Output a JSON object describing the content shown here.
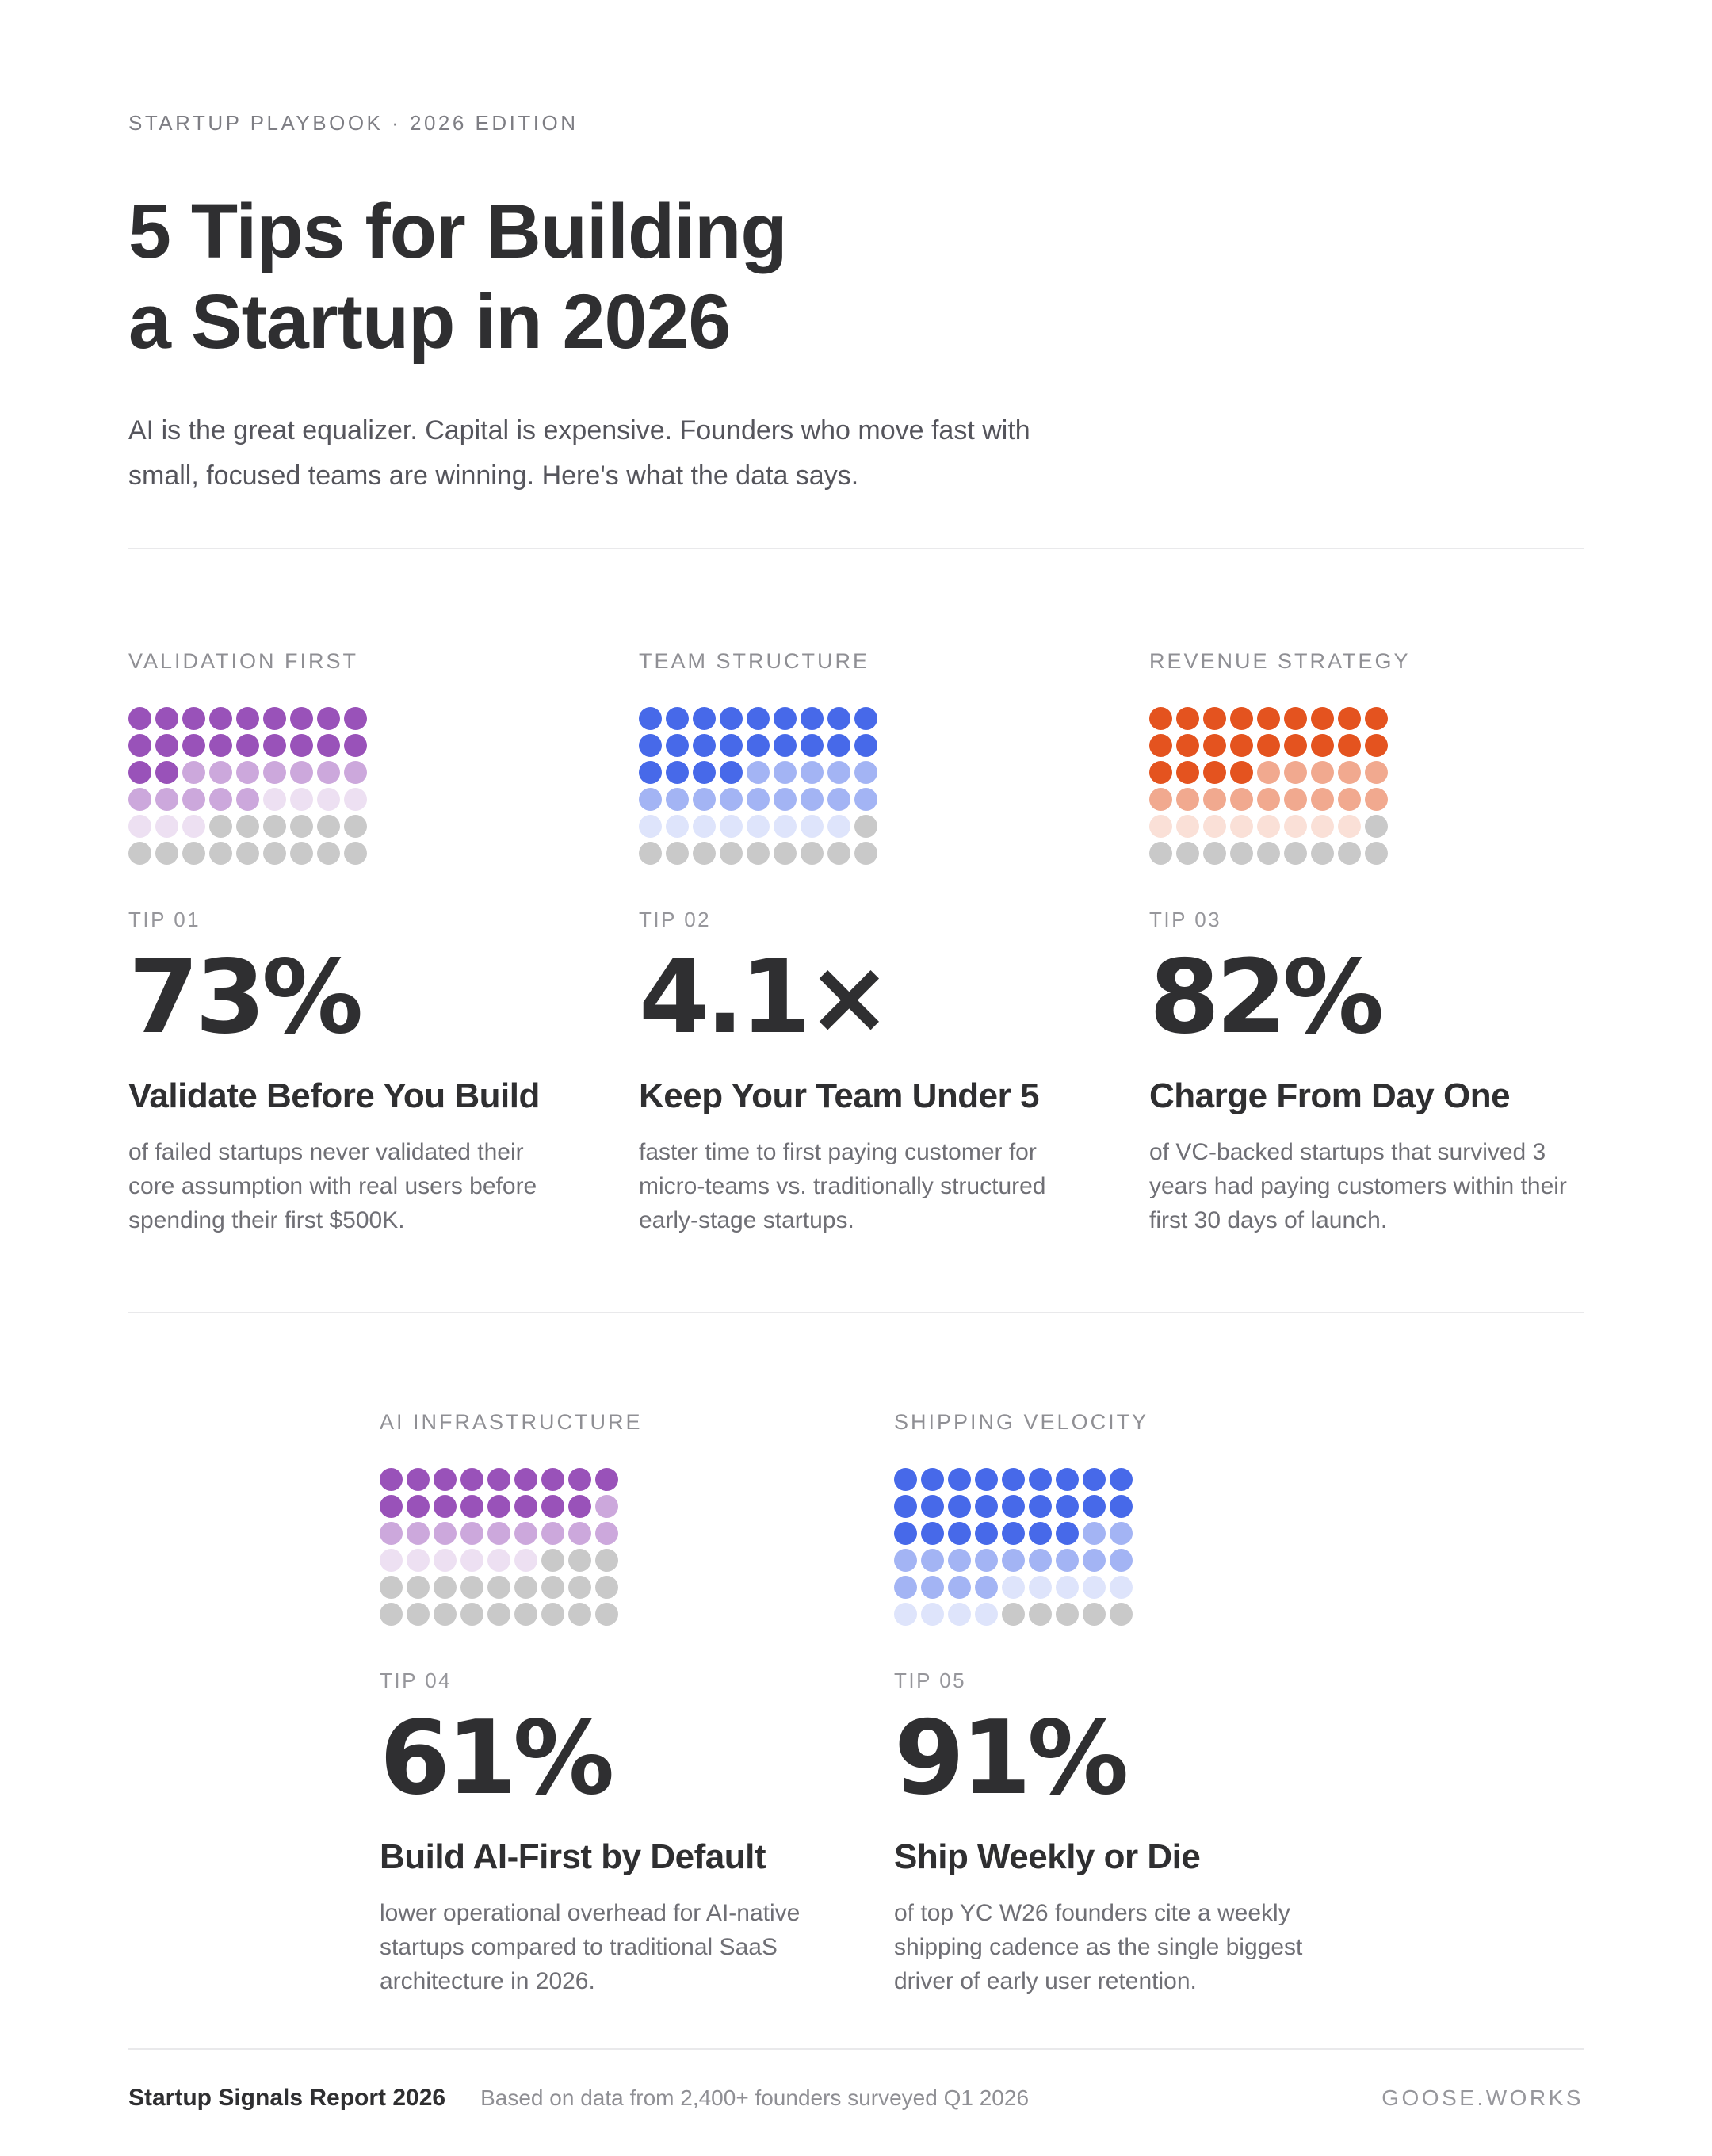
{
  "header": {
    "kicker": "STARTUP PLAYBOOK · 2026 EDITION",
    "title_line1": "5 Tips for Building",
    "title_line2": "a Startup in 2026",
    "subtitle": "AI is the great equalizer. Capital is expensive. Founders who move fast with small, focused teams are winning. Here's what the data says."
  },
  "tips": [
    {
      "section_label": "VALIDATION FIRST",
      "tip_label": "TIP 01",
      "stat": "73%",
      "heading": "Validate Before You Build",
      "body": "of failed startups never validated their core assumption with real users before spending their first $500K."
    },
    {
      "section_label": "TEAM STRUCTURE",
      "tip_label": "TIP 02",
      "stat": "4.1×",
      "heading": "Keep Your Team Under 5",
      "body": "faster time to first paying customer for micro-teams vs. traditionally structured early-stage startups."
    },
    {
      "section_label": "REVENUE STRATEGY",
      "tip_label": "TIP 03",
      "stat": "82%",
      "heading": "Charge From Day One",
      "body": "of VC-backed startups that survived 3 years had paying customers within their first 30 days of launch."
    },
    {
      "section_label": "AI INFRASTRUCTURE",
      "tip_label": "TIP 04",
      "stat": "61%",
      "heading": "Build AI-First by Default",
      "body": "lower operational overhead for AI-native startups compared to traditional SaaS architecture in 2026."
    },
    {
      "section_label": "SHIPPING VELOCITY",
      "tip_label": "TIP 05",
      "stat": "91%",
      "heading": "Ship Weekly or Die",
      "body": "of top YC W26 founders cite a weekly shipping cadence as the single biggest driver of early user retention."
    }
  ],
  "chart_data": [
    {
      "type": "waffle",
      "title": "VALIDATION FIRST",
      "value_label": "73%",
      "value": 73,
      "rows": 6,
      "columns": 9,
      "total": 54,
      "filled": 39,
      "color": "#9952b9",
      "empty_color": "#c9c9c9",
      "fade_tiers": {
        "full": 0.5,
        "medium": 0.81
      },
      "opacities": [
        1,
        0.5,
        0.18
      ]
    },
    {
      "type": "waffle",
      "title": "TEAM STRUCTURE",
      "value_label": "4.1×",
      "value": 4.1,
      "rows": 6,
      "columns": 9,
      "total": 54,
      "filled": 44,
      "color": "#4769e9",
      "empty_color": "#c9c9c9",
      "fade_tiers": {
        "full": 0.5,
        "medium": 0.81
      },
      "opacities": [
        1,
        0.5,
        0.18
      ]
    },
    {
      "type": "waffle",
      "title": "REVENUE STRATEGY",
      "value_label": "82%",
      "value": 82,
      "rows": 6,
      "columns": 9,
      "total": 54,
      "filled": 44,
      "color": "#e4531f",
      "empty_color": "#c9c9c9",
      "fade_tiers": {
        "full": 0.5,
        "medium": 0.81
      },
      "opacities": [
        1,
        0.5,
        0.18
      ]
    },
    {
      "type": "waffle",
      "title": "AI INFRASTRUCTURE",
      "value_label": "61%",
      "value": 61,
      "rows": 6,
      "columns": 9,
      "total": 54,
      "filled": 33,
      "color": "#9952b9",
      "empty_color": "#c9c9c9",
      "fade_tiers": {
        "full": 0.5,
        "medium": 0.81
      },
      "opacities": [
        1,
        0.5,
        0.18
      ]
    },
    {
      "type": "waffle",
      "title": "SHIPPING VELOCITY",
      "value_label": "91%",
      "value": 91,
      "rows": 6,
      "columns": 9,
      "total": 54,
      "filled": 49,
      "color": "#4769e9",
      "empty_color": "#c9c9c9",
      "fade_tiers": {
        "full": 0.5,
        "medium": 0.81
      },
      "opacities": [
        1,
        0.5,
        0.18
      ]
    }
  ],
  "footer": {
    "report_title": "Startup Signals Report 2026",
    "note": "Based on data from 2,400+ founders surveyed Q1 2026",
    "brand": "GOOSE.WORKS"
  }
}
